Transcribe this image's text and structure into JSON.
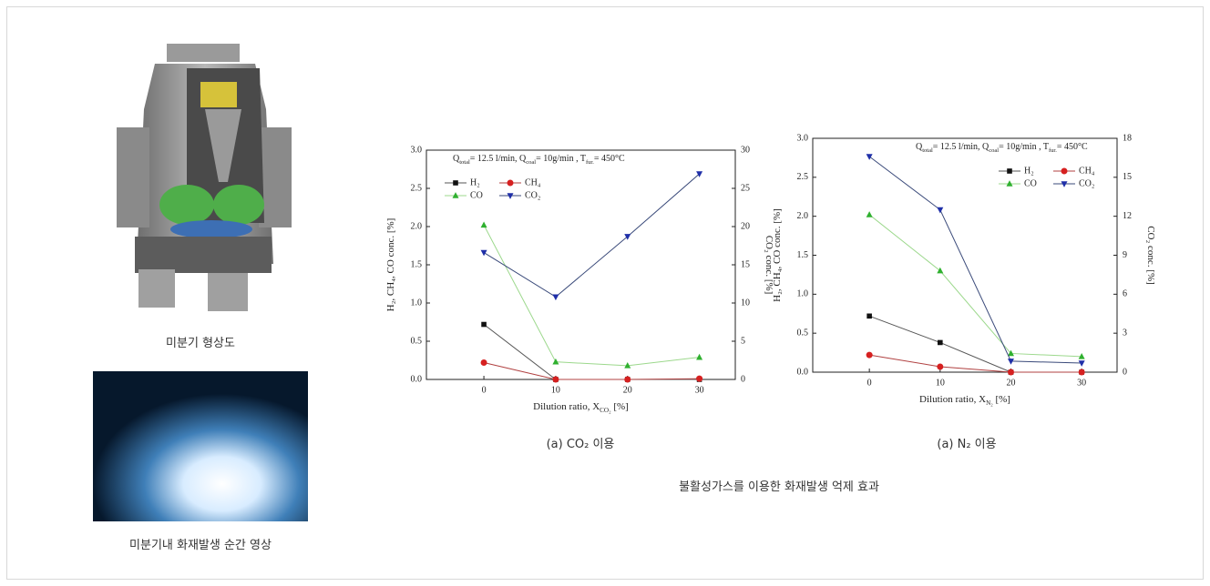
{
  "chart_data": [
    {
      "type": "line",
      "annotation": [
        "Q",
        "total",
        "= 12.5 l/min, Q",
        "coal",
        "= 10g/min , T",
        "fur.",
        "= 450°C"
      ],
      "xlabel": [
        "Dilution ratio, X",
        "CO₂",
        " [%]"
      ],
      "ylabel": "H₂, CH₄, CO conc. [%]",
      "y2label": "CO₂ conc. [%]",
      "x": [
        0,
        10,
        20,
        30
      ],
      "xlim": [
        -8,
        35
      ],
      "xticks": [
        0,
        10,
        20,
        30
      ],
      "ylim": [
        0,
        3
      ],
      "yticks": [
        {
          "value": 0,
          "label": "0.0"
        },
        0.5,
        {
          "value": 1,
          "label": "1.0"
        },
        1.5,
        {
          "value": 2,
          "label": "2.0"
        },
        2.5,
        {
          "value": 3,
          "label": "3.0"
        }
      ],
      "y2lim": [
        0,
        30
      ],
      "y2ticks": [
        0,
        5,
        10,
        15,
        20,
        25,
        30
      ],
      "legend": "upper left",
      "series": [
        {
          "name": "H₂",
          "color": "#111111",
          "line_color": "#555555",
          "marker": "square",
          "values": [
            0.72,
            0,
            0,
            0
          ]
        },
        {
          "name": "CH₄",
          "color": "#d62020",
          "line_color": "#b04040",
          "marker": "circle",
          "values": [
            0.22,
            0,
            0,
            0.01
          ]
        },
        {
          "name": "CO",
          "color": "#2fb02f",
          "line_color": "#9cd88c",
          "marker": "triangle-up",
          "values": [
            2.02,
            0.23,
            0.18,
            0.29
          ]
        },
        {
          "name": "CO₂",
          "color": "#1f2fa8",
          "line_color": "#3a4a7a",
          "marker": "triangle-down",
          "axis": "y2",
          "values": [
            16.6,
            10.8,
            18.7,
            26.9
          ]
        }
      ]
    },
    {
      "type": "line",
      "annotation": [
        "Q",
        "total",
        "= 12.5 l/min, Q",
        "coal",
        "= 10g/min , T",
        "fur.",
        "= 450°C"
      ],
      "xlabel": [
        "Dilution ratio, X",
        "N₂",
        " [%]"
      ],
      "ylabel": "H₂, CH₄, CO conc. [%]",
      "y2label": "CO₂ conc. [%]",
      "x": [
        0,
        10,
        20,
        30
      ],
      "xlim": [
        -8,
        35
      ],
      "xticks": [
        0,
        10,
        20,
        30
      ],
      "ylim": [
        0,
        3
      ],
      "yticks": [
        {
          "value": 0,
          "label": "0.0"
        },
        0.5,
        {
          "value": 1,
          "label": "1.0"
        },
        1.5,
        {
          "value": 2,
          "label": "2.0"
        },
        2.5,
        {
          "value": 3,
          "label": "3.0"
        }
      ],
      "y2lim": [
        0,
        18
      ],
      "y2ticks": [
        0,
        3,
        6,
        9,
        12,
        15,
        18
      ],
      "legend": "upper right",
      "series": [
        {
          "name": "H₂",
          "color": "#111111",
          "line_color": "#555555",
          "marker": "square",
          "values": [
            0.72,
            0.38,
            0,
            0
          ]
        },
        {
          "name": "CH₄",
          "color": "#d62020",
          "line_color": "#b04040",
          "marker": "circle",
          "values": [
            0.22,
            0.07,
            0,
            0
          ]
        },
        {
          "name": "CO",
          "color": "#2fb02f",
          "line_color": "#9cd88c",
          "marker": "triangle-up",
          "values": [
            2.02,
            1.3,
            0.24,
            0.2
          ]
        },
        {
          "name": "CO₂",
          "color": "#1f2fa8",
          "line_color": "#3a4a7a",
          "marker": "triangle-down",
          "axis": "y2",
          "values": [
            16.6,
            12.5,
            0.85,
            0.7
          ]
        }
      ]
    }
  ],
  "images": [
    {
      "caption": "미분기 형상도"
    },
    {
      "caption": "미분기내 화재발생 순간 영상"
    }
  ],
  "chart_captions": [
    "(a) CO₂ 이용",
    "(a) N₂ 이용"
  ],
  "figure_caption": "불활성가스를 이용한 화재발생 억제 효과"
}
